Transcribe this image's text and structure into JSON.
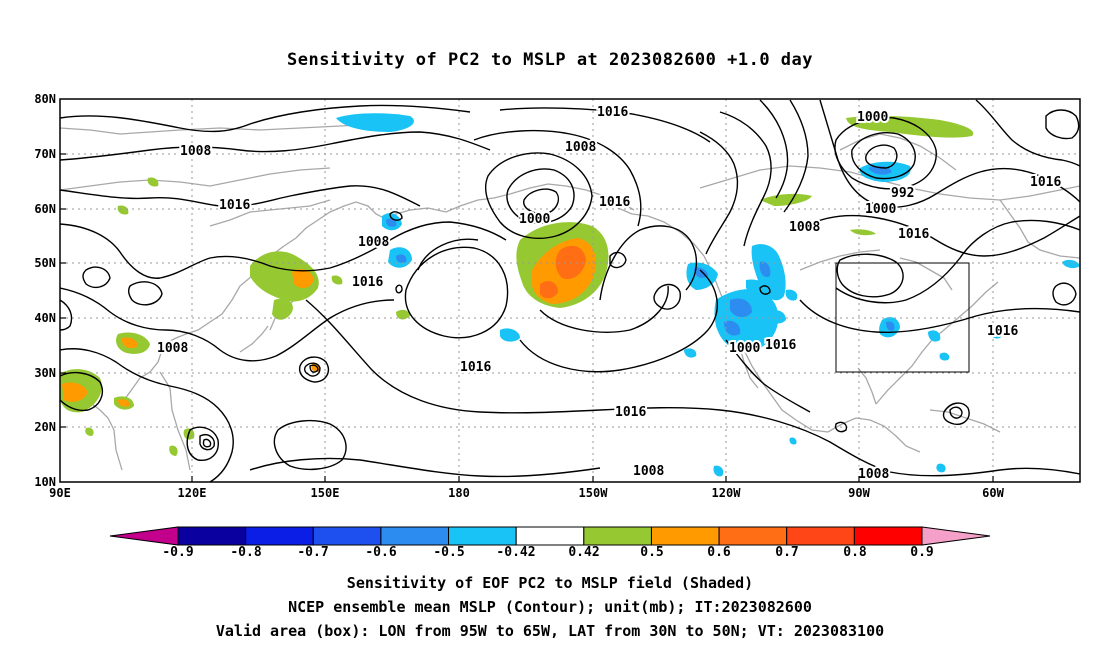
{
  "title": "Sensitivity of PC2 to MSLP at 2023082600 +1.0 day",
  "map": {
    "lat_ticks": [
      "80N",
      "70N",
      "60N",
      "50N",
      "40N",
      "30N",
      "20N",
      "10N"
    ],
    "lon_ticks": [
      "90E",
      "120E",
      "150E",
      "180",
      "150W",
      "120W",
      "90W",
      "60W"
    ],
    "contour_labels": [
      {
        "text": "1016"
      },
      {
        "text": "1008"
      },
      {
        "text": "1016"
      },
      {
        "text": "1008"
      },
      {
        "text": "1000"
      },
      {
        "text": "1016"
      },
      {
        "text": "1016"
      },
      {
        "text": "1008"
      },
      {
        "text": "1016"
      },
      {
        "text": "1016"
      },
      {
        "text": "1008"
      },
      {
        "text": "1000"
      },
      {
        "text": "992"
      },
      {
        "text": "1000"
      },
      {
        "text": "1008"
      },
      {
        "text": "1016"
      },
      {
        "text": "1016"
      },
      {
        "text": "1016"
      },
      {
        "text": "1008"
      },
      {
        "text": "1008"
      },
      {
        "text": "1016"
      },
      {
        "text": "1000"
      }
    ],
    "valid_box": {
      "lon_min": -95,
      "lon_max": -65,
      "lat_min": 30,
      "lat_max": 50
    }
  },
  "colorbar": {
    "labels": [
      "-0.9",
      "-0.8",
      "-0.7",
      "-0.6",
      "-0.5",
      "-0.42",
      "0.42",
      "0.5",
      "0.6",
      "0.7",
      "0.8",
      "0.9"
    ],
    "colors": [
      "#0a00a0",
      "#0a1ee6",
      "#1e50f0",
      "#2d8cf0",
      "#19c3f5",
      "#ffffff",
      "#96c832",
      "#ff9a00",
      "#ff6e14",
      "#ff4616",
      "#ff0000"
    ],
    "low_end_color": "#c3008c",
    "high_end_color": "#f4a0c8"
  },
  "footer": {
    "line1": "Sensitivity of EOF PC2 to MSLP field (Shaded)",
    "line2": "NCEP ensemble mean MSLP (Contour); unit(mb); IT:2023082600",
    "line3": "Valid area (box): LON from 95W to 65W, LAT from 30N to 50N; VT: 2023083100"
  }
}
